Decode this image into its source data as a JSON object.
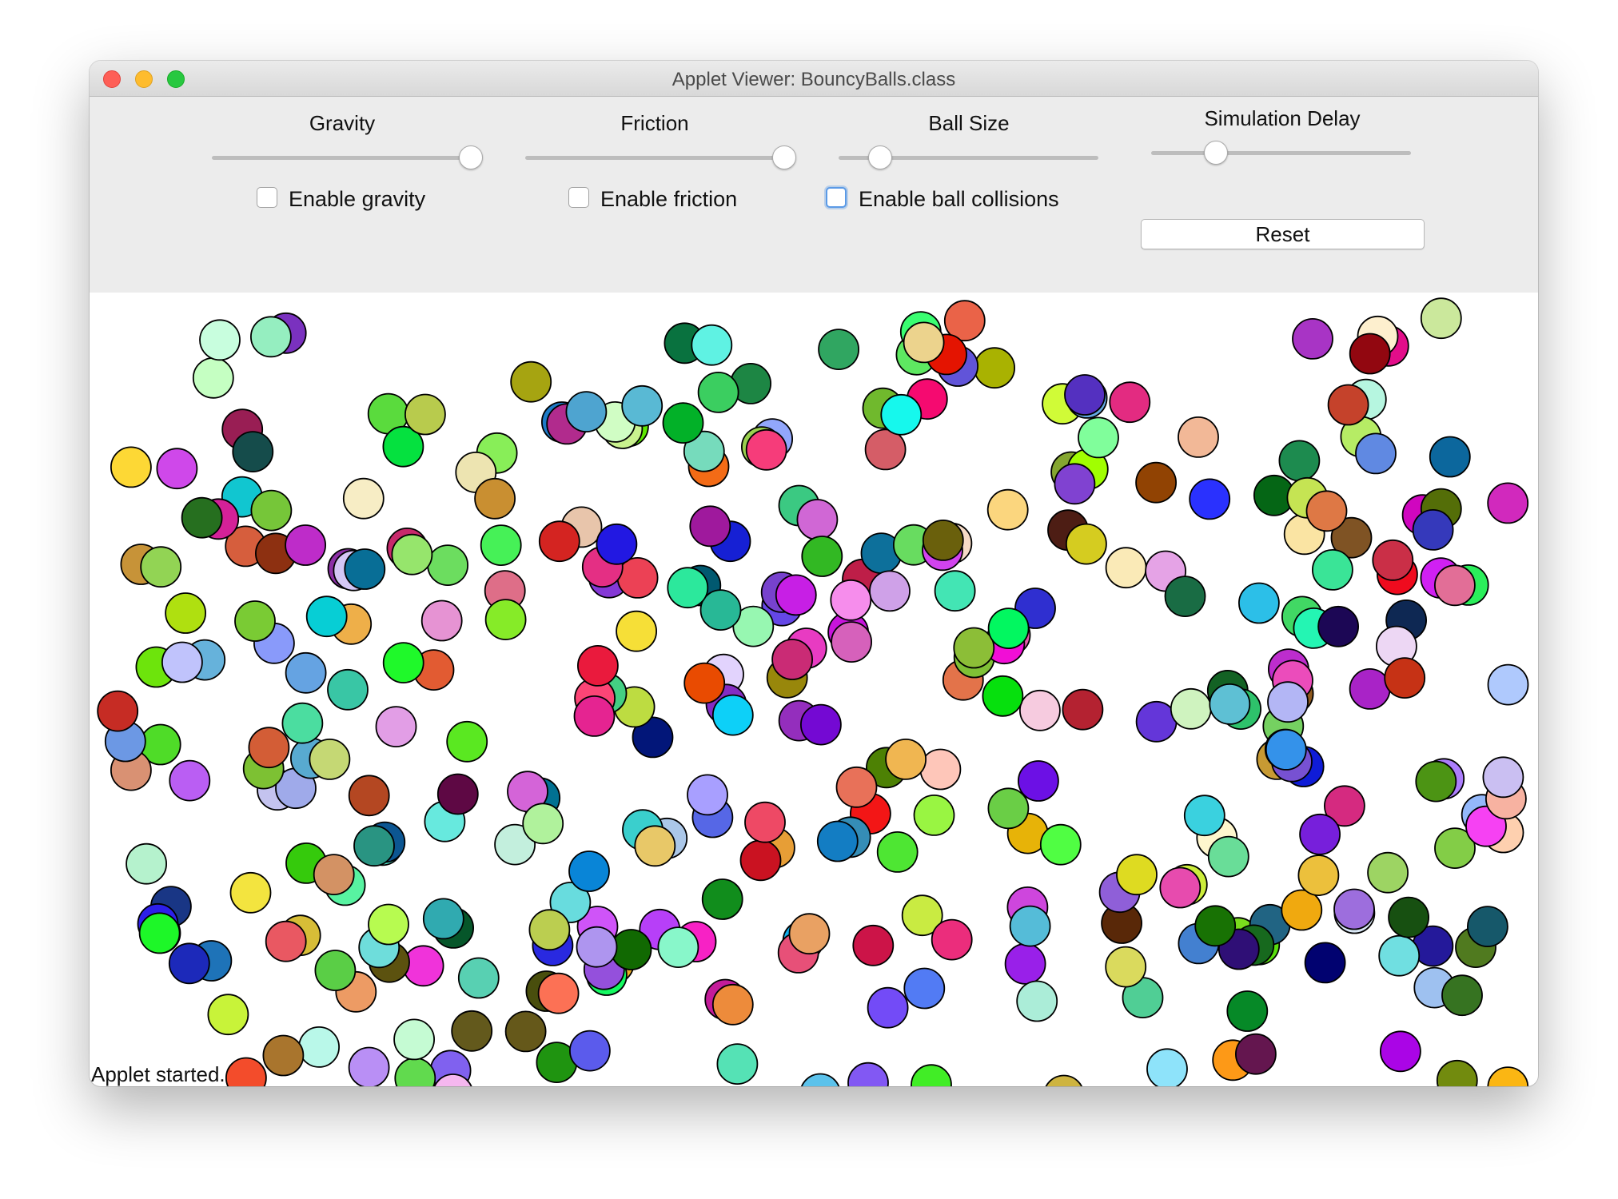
{
  "window": {
    "title": "Applet Viewer: BouncyBalls.class"
  },
  "controls": {
    "gravity": {
      "label": "Gravity",
      "value": 1.0,
      "checkbox_label": "Enable gravity",
      "checked": false
    },
    "friction": {
      "label": "Friction",
      "value": 1.0,
      "checkbox_label": "Enable friction",
      "checked": false
    },
    "ball_size": {
      "label": "Ball Size",
      "value": 0.16,
      "checkbox_label": "Enable ball collisions",
      "checked": false
    },
    "simulation_delay": {
      "label": "Simulation Delay",
      "value": 0.22
    },
    "reset_label": "Reset"
  },
  "status": {
    "text": "Applet started."
  },
  "colors": {
    "window_bg": "#ececec",
    "canvas_bg": "#ffffff",
    "ball_outline": "#000000",
    "focus": "#5b9ae6"
  }
}
